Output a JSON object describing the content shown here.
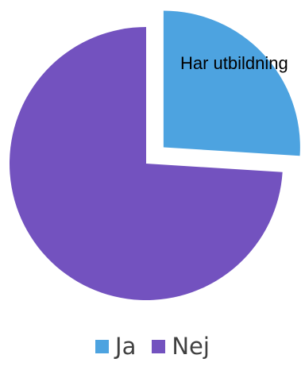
{
  "chart_data": {
    "type": "pie",
    "categories": [
      "Ja",
      "Nej"
    ],
    "values": [
      26,
      74
    ],
    "colors": [
      "#4da3e0",
      "#7352bf"
    ],
    "data_labels": [
      "Har utbildning",
      ""
    ],
    "exploded": "Ja",
    "start_angle": "12 o'clock, clockwise",
    "legend": {
      "position": "bottom"
    },
    "title": ""
  }
}
